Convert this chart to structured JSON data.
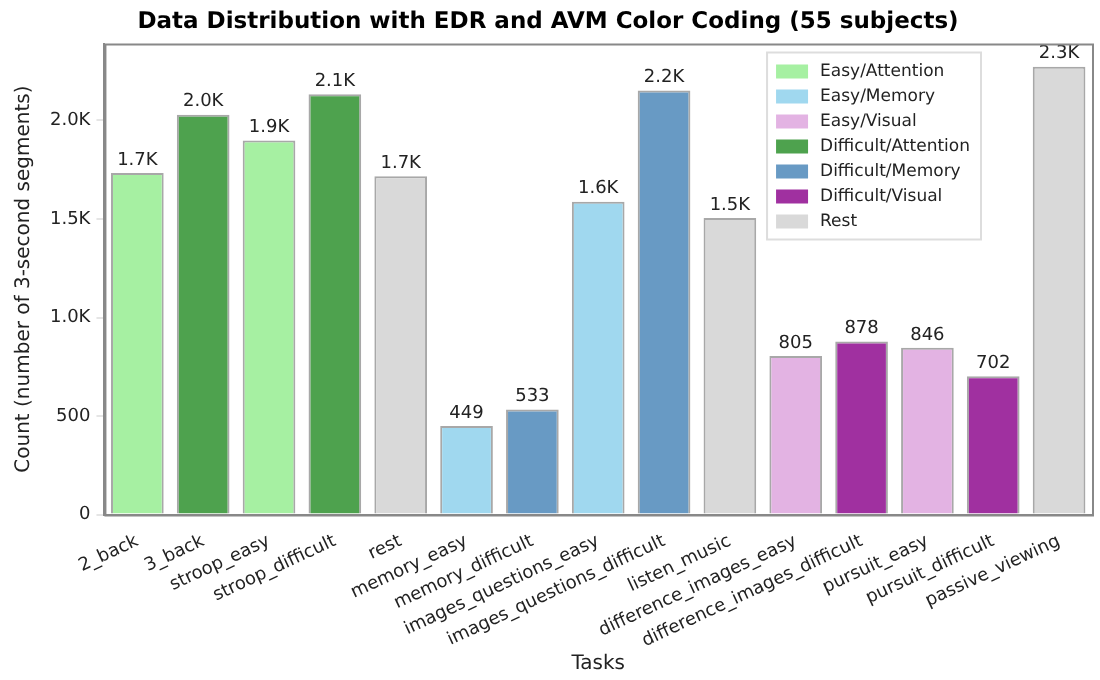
{
  "chart_data": {
    "type": "bar",
    "title": "Data Distribution with EDR and AVM Color Coding (55 subjects)",
    "xlabel": "Tasks",
    "ylabel": "Count (number of 3-second segments)",
    "categories": [
      "2_back",
      "3_back",
      "stroop_easy",
      "stroop_difficult",
      "rest",
      "memory_easy",
      "memory_difficult",
      "images_questions_easy",
      "images_questions_difficult",
      "listen_music",
      "difference_images_easy",
      "difference_images_difficult",
      "pursuit_easy",
      "pursuit_difficult",
      "passive_viewing"
    ],
    "series": [
      {
        "name": "Easy/Attention",
        "color": "#a6f0a2",
        "values": [
          1733,
          null,
          1898,
          null,
          null,
          null,
          null,
          null,
          null,
          null,
          null,
          null,
          null,
          null,
          null
        ],
        "value_labels": [
          "1.7K",
          null,
          "1.9K",
          null,
          null,
          null,
          null,
          null,
          null,
          null,
          null,
          null,
          null,
          null,
          null
        ]
      },
      {
        "name": "Easy/Memory",
        "color": "#a0d8ef",
        "values": [
          null,
          null,
          null,
          null,
          null,
          449,
          null,
          1588,
          null,
          null,
          null,
          null,
          null,
          null,
          null
        ],
        "value_labels": [
          null,
          null,
          null,
          null,
          null,
          "449",
          null,
          "1.6K",
          null,
          null,
          null,
          null,
          null,
          null,
          null
        ]
      },
      {
        "name": "Easy/Visual",
        "color": "#e3b3e3",
        "values": [
          null,
          null,
          null,
          null,
          null,
          null,
          null,
          null,
          null,
          null,
          805,
          null,
          846,
          null,
          null
        ],
        "value_labels": [
          null,
          null,
          null,
          null,
          null,
          null,
          null,
          null,
          null,
          null,
          "805",
          null,
          "846",
          null,
          null
        ]
      },
      {
        "name": "Difficult/Attention",
        "color": "#4ea24e",
        "values": [
          null,
          2029,
          null,
          2133,
          null,
          null,
          null,
          null,
          null,
          null,
          null,
          null,
          null,
          null,
          null
        ],
        "value_labels": [
          null,
          "2.0K",
          null,
          "2.1K",
          null,
          null,
          null,
          null,
          null,
          null,
          null,
          null,
          null,
          null,
          null
        ]
      },
      {
        "name": "Difficult/Memory",
        "color": "#689ac4",
        "values": [
          null,
          null,
          null,
          null,
          null,
          null,
          533,
          null,
          2152,
          null,
          null,
          null,
          null,
          null,
          null
        ],
        "value_labels": [
          null,
          null,
          null,
          null,
          null,
          null,
          "533",
          null,
          "2.2K",
          null,
          null,
          null,
          null,
          null,
          null
        ]
      },
      {
        "name": "Difficult/Visual",
        "color": "#a030a0",
        "values": [
          null,
          null,
          null,
          null,
          null,
          null,
          null,
          null,
          null,
          null,
          null,
          878,
          null,
          702,
          null
        ],
        "value_labels": [
          null,
          null,
          null,
          null,
          null,
          null,
          null,
          null,
          null,
          null,
          null,
          "878",
          null,
          "702",
          null
        ]
      },
      {
        "name": "Rest",
        "color": "#d9d9d9",
        "values": [
          null,
          null,
          null,
          null,
          1717,
          null,
          null,
          null,
          null,
          1505,
          null,
          null,
          null,
          null,
          2273
        ],
        "value_labels": [
          null,
          null,
          null,
          null,
          "1.7K",
          null,
          null,
          null,
          null,
          "1.5K",
          null,
          null,
          null,
          null,
          "2.3K"
        ]
      }
    ],
    "ylim": [
      0,
      2390
    ],
    "yticks": [
      0,
      500,
      {
        "value": 1000,
        "label": "1.0K"
      },
      {
        "value": 1500,
        "label": "1.5K"
      },
      {
        "value": 2000,
        "label": "2.0K"
      }
    ],
    "grid": false,
    "legend": "top right"
  }
}
